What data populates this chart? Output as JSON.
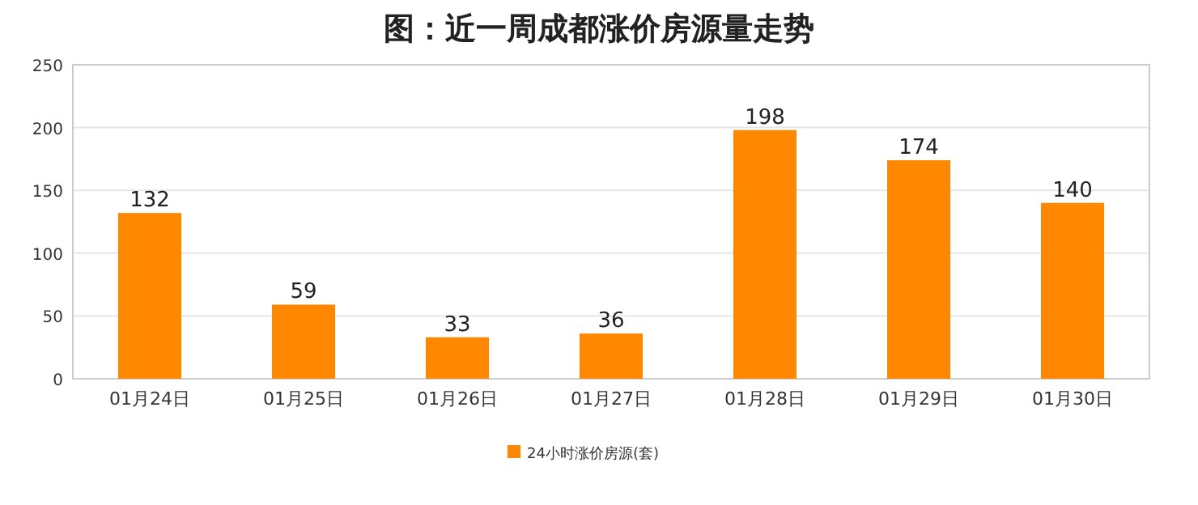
{
  "chart_data": {
    "type": "bar",
    "title": "图：近一周成都涨价房源量走势",
    "categories": [
      "01月24日",
      "01月25日",
      "01月26日",
      "01月27日",
      "01月28日",
      "01月29日",
      "01月30日"
    ],
    "series": [
      {
        "name": "24小时涨价房源(套)",
        "color": "#ff8800",
        "values": [
          132,
          59,
          33,
          36,
          198,
          174,
          140
        ]
      }
    ],
    "ylim": [
      0,
      250
    ],
    "yticks": [
      0,
      50,
      100,
      150,
      200,
      250
    ],
    "grid": "y",
    "legend": "bottom",
    "data_labels": true
  }
}
